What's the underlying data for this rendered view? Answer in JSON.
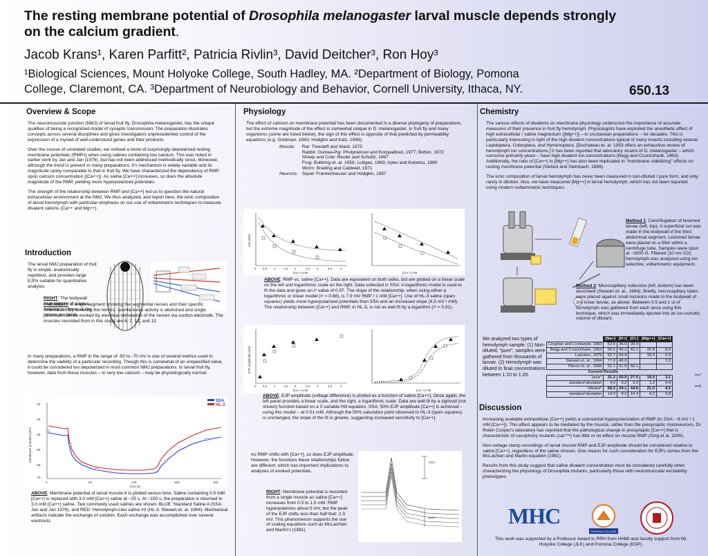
{
  "header": {
    "title_1": "The resting membrane potential of ",
    "title_species": "Drosophila melanogaster",
    "title_2": " larval muscle depends strongly",
    "title_3": "on the calcium gradient",
    "title_dot": ".",
    "authors": "Jacob Krans¹, Karen Parfitt², Patricia Rivlin³, David Deitcher³, Ron Hoy³",
    "affil_1": "¹Biological Sciences, Mount Holyoke College, South Hadley, MA. ²Department of Biology, Pomona",
    "affil_2": "College, Claremont, CA. ³Department of Neurobiology and Behavior, Cornell University, Ithaca, NY.",
    "poster_number": "650.13"
  },
  "overview": {
    "heading": "Overview & Scope",
    "p1": "The neuromuscular junction (NMJ) of larval fruit fly, Drosophila melanogaster, has the unique qualities of being a recognized model of synaptic transmission. The preparation illustrates concepts across several disciplines and gives investigators unprecedented control of the expression of a myriad of well-understood genes and their products.",
    "p2": "Over the course of unrelated studies, we noticed a trend of surprisingly depolarized resting membrane potentials (RMPs) when using salines containing low calcium. This was noted in earlier work by Jan and Jan (1976), but has not been addressed methodically since. Moreover, although the trend is present in many preparations, it's mechanism is widely variable and its magnitude rarely comparable to that in fruit fly. We have characterized the dependency of RMP upon calcium concentration ([Ca++]). As saline [Ca++] increases, so does the absolute magnitude of the RMP, yielding more hyperpolarized potentials.",
    "p3": "The strength of the relationship between RMP and [Ca++] led us to question the natural extracellular environment at the NMJ. We thus analyzed, and report here, the ionic composition of larval hemolymph with particular emphasis on our use of voltammetric techniques to measure divalent cations (Ca++ and Mg++)."
  },
  "introduction": {
    "heading": "Introduction",
    "p1": "The larval NMJ preparation of fruit fly is simple, anatomically repetitive, and provides large EJPs suitable for quantitative analysis.",
    "right_label": "RIGHT",
    "right_text": ": The bodywall musculature of a larva. Anterior is shown at top, nerves are black",
    "far_right_label": "FAR RIGHT",
    "far_right_text": ": A single segment showing the segmental nerves and their specific innervation. By severing the nerves, spontaneous activity is abolished and single potentials can be evoked by electrical stimulation of the nerves via suction electrode. The muscles recorded from in this study are 6, 7, 12, and 13.",
    "p2": "In many preparations, a RMP in the range of -50 to -70 mV is one of several metrics used to determine the viability of a particular recording. Though this is somewhat of an unspecified value, it could be considered too depolarized in most common NMJ preparations. In larval fruit fly, however, data from these muscles – in very low calcium – may be physiologically normal.",
    "legend_ssa": "SSA",
    "legend_hl3": "HL-3",
    "above_label": "ABOVE",
    "above_text": ": Membrane potential of larval muscle 6 is plotted versus time. Saline containing 0.5 mM [Ca++] is replaced with 3.0 mM [Ca++] saline at ~25 s. At ~150 s, the preparation is returned to 3.0 mM [Ca++] saline. Two commonly used salines are shown: BLUE: Standard Saline A (SSA: Jan and Jan 1976), and RED: Hemolymph-Like saline #3 (HL-3: Stewart et. al. 1994). Mechanical artifacts indicate the exchange of solution. Each exchange was accomplished over several washouts.",
    "xlabel": "time (s)",
    "ylabel": "membrane potential (mV)"
  },
  "physiology": {
    "heading": "Physiology",
    "p1": "The effect of calcium on membrane potential has been documented in a diverse phylogeny of preparations, but the extreme magnitude of the effect is somewhat unique in D. melanogaster. In fruit fly and many organisms (some are listed below), the sign of this effect is opposite of that predicted by permeability equations (e.g. Goldman, 1943; Hodgkin and Katz, 1949).",
    "muscle_label": "Muscle:",
    "muscle_refs": [
      "Rat: Theisleff and Ward, 1975",
      "Rabbit; Guinea-Pig: Pholpramool and Korppaibool, 1977; Bolton, 1972",
      "Sheep and Cow: Reuter and Schultz, 1967",
      "Frog: Bulbring et. al. 1956; Luttgau, 1963; Apter and Koketsu, 1960",
      "Worm: Brading and Caldwell, 1971"
    ],
    "neuron_label": "Neurons:",
    "neuron_ref": "Squid: Frankenhauser and Hodgkin, 1957",
    "cap1_label": "ABOVE",
    "cap1_text": ": RMP vs. saline [Ca++]. Data are equivalent on both sides, but are plotted on a linear scale on the left and logarithmic scale on the right. Data collected in SSA: A logarithmic model is used to fit the data and gives an r² value of 0.97. The slope of the relationship, when using either a logarithmic or linear model (r² = 0.88), is 7.9 mV RMP / 1 mM [Ca++]. Use of HL-3 saline (open squares) yields more hyperpolarized potentials than SSA and an increased slope (9.5 mV / mM). The relationship between [Ca++] and RMP, in HL-3, is not as well fit by a logarithm (r² = 0.91).",
    "cap2_label": "ABOVE",
    "cap2_text": ": EJP amplitude (voltage difference) is plotted as a function of saline [Ca++]. Once again, the left panel provides a linear scale, and the right, a logarithmic scale. Data are well fit by a sigmoid (not shown) function based on a 3 variable Hill equation. SSA: 50% EJP amplitude [Ca++] is achieved – using this model – at 0.51 mM. Although the 50% saturation point observed in HL-3 (open squares) is unchanged, the slope of the fit is greater, suggesting increased sensitivity to [Ca++].",
    "p2": "As RMP shifts with [Ca++], so does EJP amplitude. However, the functions these relationships follow are different, which has important implications to analyses of evoked potentials.",
    "right_label": "RIGHT",
    "right_text": ": Membrane potential is recorded from a single muscle as saline [Ca++] increases from 0.5 to 1.5 mM. RMP hyperpolarizes about 5 mV, but the peak of the EJP shifts less than half that: 2.3 mV. This phenomenon supports the use of scaling equations such as McLachlan and Martin's (1981).",
    "xlabel": "[Ca++] mM",
    "ylabel_rmp": "rest (mV)",
    "ylabel_ejp": "EJP amplitude (mV)",
    "trace_label_1": "2mV",
    "trace_label_2": "5mV"
  },
  "chemistry": {
    "heading": "Chemistry",
    "p1": "The various effects of divalents on membrane physiology underscore the importance of accurate measures of their presence in fruit fly hemolymph. Physiologists have exploited the anesthetic effect of high extracellular / saline magnesium ([Mg++]) – in crustacean preparations – for decades. This is particularly interesting in light of the high divalent concentrations typical of many insects including several Lepidoptera, Coleoptera, and Hymenoptera. [Duchateau et. al. 1953 offers an exhaustive review of hemolymph ion concentrations.] It has been reported that laboratory strains of D. melanogaster – which consume primarily yeast – have high divalent ion concentrations (Begg and Cruickshank, 1963). Additionally, the ratio of [Ca++] to [Mg++] has also been implicated in \"membrane stabilizing\" effects on resting membrane potential (Stefani and Steinbach, 1969).",
    "p2": "The ionic composition of larval hemolymph has never been measured in non-diluted / pure form, and only rarely in dilution. Also, we have measured [Mg++] in larval hemolymph, which has not been reported using modern voltammetric techniques.",
    "m1_label": "Method 1",
    "m1_text": ": Centrifugation of lesioned larvae (left, top). A superficial cut was made in the bodywall of the third abdominal segment. Lesioned larvae were placed on a filter within a centrifuge tube. Samples were spun at ~3000 G. Filtered (10 nm CO) hemolymph was analyzed using ion selective, voltammetric equipment.",
    "m2_label": "Method 2",
    "m2_text": ": Microcapillary collection (left, bottom) has been described (Stewart et. al., 1994). Briefly, microcapillary tubes were placed against small incisions made in the bodywall of 3rd instar larvae, as above. Between 0.5 and 1 ul of hemolymph was gathered from each larva using this technique, which was immediately ejected into an iso-osmotic volume of dilutant.",
    "analyzed_text": "We analyzed two types of hemolymph sample: (1) Non-diluted, \"pure\", samples were gathered from thousands of larvae. (2) Hemolymph was diluted to final concentrations between 1:10 to 1:20.",
    "table_headers": [
      "",
      "[Na+]",
      "[K+]",
      "[Cl-]",
      "[Mg++]",
      "[Ca++]"
    ],
    "table_rows": [
      [
        "Croghan and Lockwood, 1960",
        "52.0",
        "36.0",
        "39.0",
        "",
        ""
      ],
      [
        "Begg and Cruickshank, 1963",
        "56.5",
        "40.2",
        "42.2",
        "20.8",
        "8.0"
      ],
      [
        "Lariviere, 1979",
        "62.7",
        "55.4",
        "",
        "33.3",
        "5.9"
      ],
      [
        "Stewart et. al., 1994",
        "77.0",
        "40.0",
        "",
        "",
        "1.5"
      ],
      [
        "Pierce et. al., 1999",
        "51.1",
        "51.8",
        "56.1",
        "",
        ""
      ]
    ],
    "current_results": "Current Results",
    "result_rows": [
      [
        "\"pure\"",
        "31.3",
        "69.9",
        "27.5",
        "19.0",
        "3.1"
      ],
      [
        "standard deviation",
        "4.0",
        "9.2",
        "3.9",
        "1.2",
        "0.4"
      ],
      [
        "\"diluted\"",
        "68.3",
        "29.1",
        "44.6",
        "21.0",
        "4.1"
      ],
      [
        "standard deviation",
        "14.9",
        "8.0",
        "16.4",
        "4.2",
        "0.8"
      ]
    ],
    "n_pure": "n=7",
    "n_diluted": "n=6"
  },
  "discussion": {
    "heading": "Discussion",
    "p1": "Increasing available extracellular [Ca++] yields a substantial hyperpolarization of RMP (in SSA: ~8 mV / 1 mM [Ca++]). This effect appears to be mediated by the muscle, rather than the presynaptic motoneurons. Dr. Robin Cooper's laboratory has reported that the pathological change in presynaptic [Ca++] that is characteristic of cacophony mutants (cacᵀˢ²) has little or no effect on muscle RMP (Xing et al. 2005).",
    "p2": "Non-voltage clamp recordings of larval muscle RMP and EJP amplitude should be considered relative to saline [Ca++], regardless of the saline chosen. One means for such consideration for EJPs comes from the McLachlan and Martin equation (1981).",
    "p3": "Results from this study suggest that saline divalent concentration must be considered carefully when characterizing the physiology of Drosophila mutants, particularly those with neuromuscular excitability phenotypes.",
    "mhc_logo": "MHC",
    "pomona_logo": "POMONA COLLEGE",
    "ack": "This work was supported by a Professor Award to RRH from HHMI and faculty support from Mt. Holyoke College (JLK) and Pomona College (KDP)."
  },
  "colors": {
    "ssa": "#1f3fd0",
    "hl3": "#d42020",
    "mhc": "#1b4b9a",
    "cornell": "#b31b1b"
  }
}
